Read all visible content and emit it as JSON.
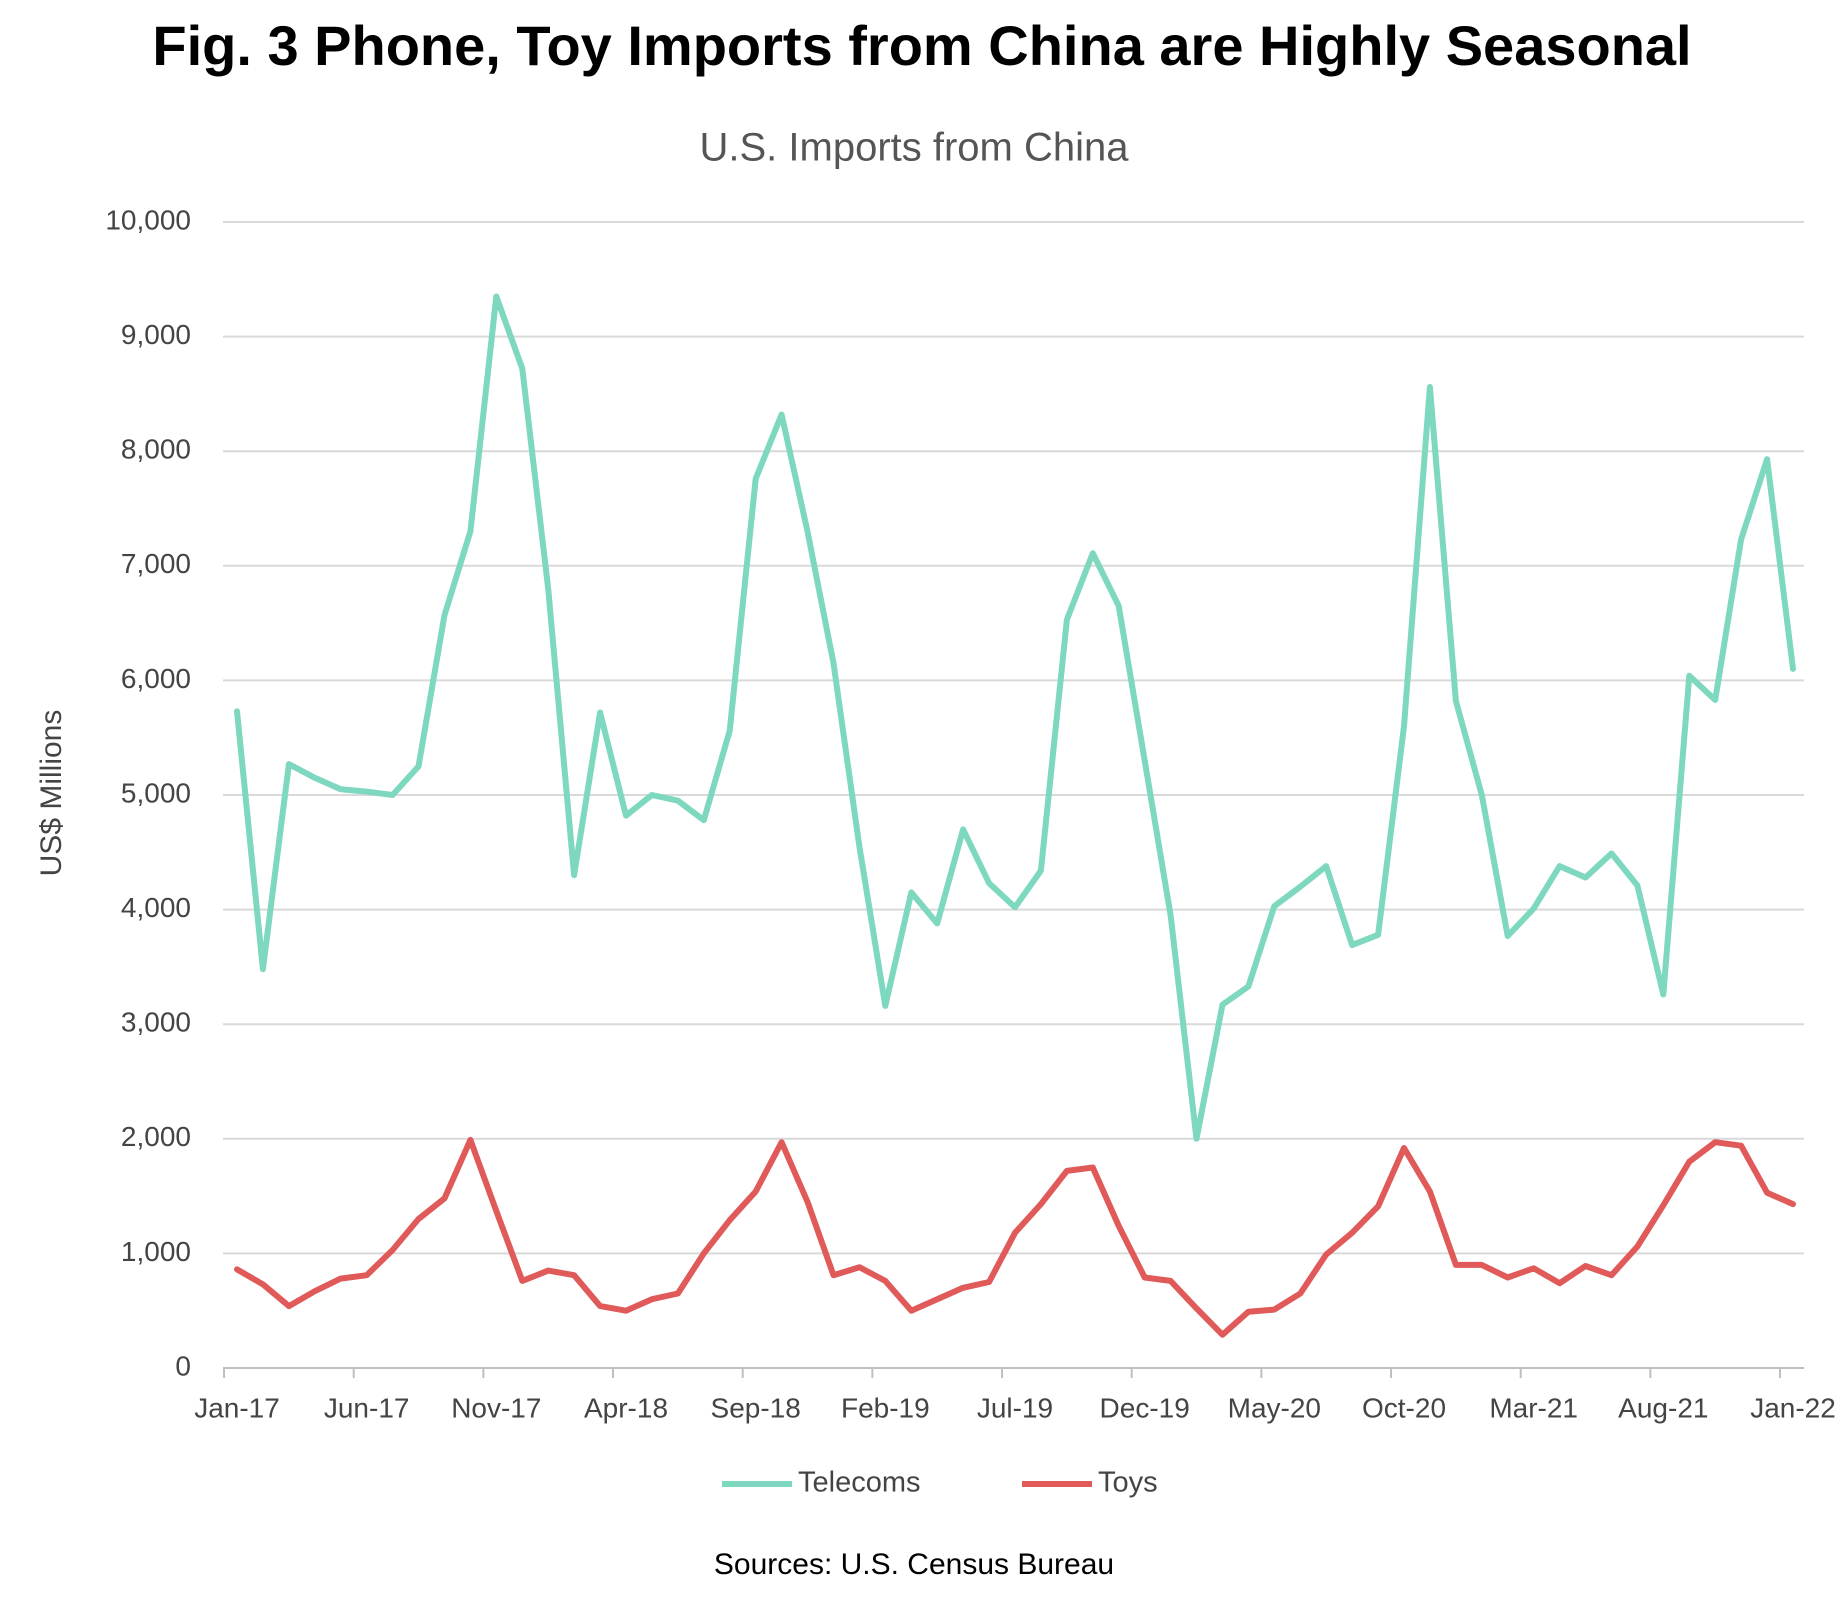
{
  "chart_data": {
    "type": "line",
    "title": "Fig. 3 Phone, Toy Imports from China are Highly Seasonal",
    "subtitle": "U.S. Imports from China",
    "y_label": "US$ Millions",
    "source": "Sources: U.S. Census Bureau",
    "categories": [
      "Jan-17",
      null,
      null,
      null,
      null,
      "Jun-17",
      null,
      null,
      null,
      null,
      "Nov-17",
      null,
      null,
      null,
      null,
      "Apr-18",
      null,
      null,
      null,
      null,
      "Sep-18",
      null,
      null,
      null,
      null,
      "Feb-19",
      null,
      null,
      null,
      null,
      "Jul-19",
      null,
      null,
      null,
      null,
      "Dec-19",
      null,
      null,
      null,
      null,
      "May-20",
      null,
      null,
      null,
      null,
      "Oct-20",
      null,
      null,
      null,
      null,
      "Mar-21",
      null,
      null,
      null,
      null,
      "Aug-21",
      null,
      null,
      null,
      null,
      "Jan-22"
    ],
    "series": [
      {
        "name": "Telecoms",
        "color": "#7dd8bf",
        "values": [
          5730,
          3480,
          5270,
          5150,
          5050,
          5030,
          5000,
          5250,
          6570,
          7300,
          9350,
          8720,
          6800,
          4300,
          5720,
          4820,
          5000,
          4950,
          4780,
          5560,
          7760,
          8320,
          7300,
          6150,
          4550,
          3160,
          4150,
          3880,
          4700,
          4230,
          4020,
          4340,
          6530,
          7110,
          6650,
          5300,
          3950,
          2000,
          3170,
          3330,
          4030,
          4200,
          4380,
          3690,
          3780,
          5600,
          8560,
          5820,
          5000,
          3770,
          4010,
          4380,
          4280,
          4490,
          4210,
          3260,
          6040,
          5830,
          7230,
          7930,
          6100
        ]
      },
      {
        "name": "Toys",
        "color": "#e05a5a",
        "values": [
          860,
          730,
          540,
          670,
          780,
          810,
          1030,
          1300,
          1480,
          1990,
          1370,
          760,
          850,
          810,
          540,
          500,
          600,
          650,
          1000,
          1290,
          1540,
          1970,
          1450,
          810,
          880,
          760,
          500,
          600,
          700,
          750,
          1180,
          1430,
          1720,
          1750,
          1240,
          790,
          760,
          520,
          290,
          490,
          510,
          650,
          990,
          1180,
          1410,
          1920,
          1540,
          900,
          900,
          790,
          870,
          740,
          890,
          810,
          1060,
          1420,
          1800,
          1970,
          1940,
          1530,
          1430
        ]
      }
    ],
    "ylim": [
      0,
      10000
    ],
    "yticks": [
      0,
      {
        "value": 1000,
        "label": "1,000"
      },
      {
        "value": 2000,
        "label": "2,000"
      },
      {
        "value": 3000,
        "label": "3,000"
      },
      {
        "value": 4000,
        "label": "4,000"
      },
      {
        "value": 5000,
        "label": "5,000"
      },
      {
        "value": 6000,
        "label": "6,000"
      },
      {
        "value": 7000,
        "label": "7,000"
      },
      {
        "value": 8000,
        "label": "8,000"
      },
      {
        "value": 9000,
        "label": "9,000"
      },
      {
        "value": 10000,
        "label": "10,000"
      }
    ],
    "grid": true,
    "legend": "bottom"
  }
}
